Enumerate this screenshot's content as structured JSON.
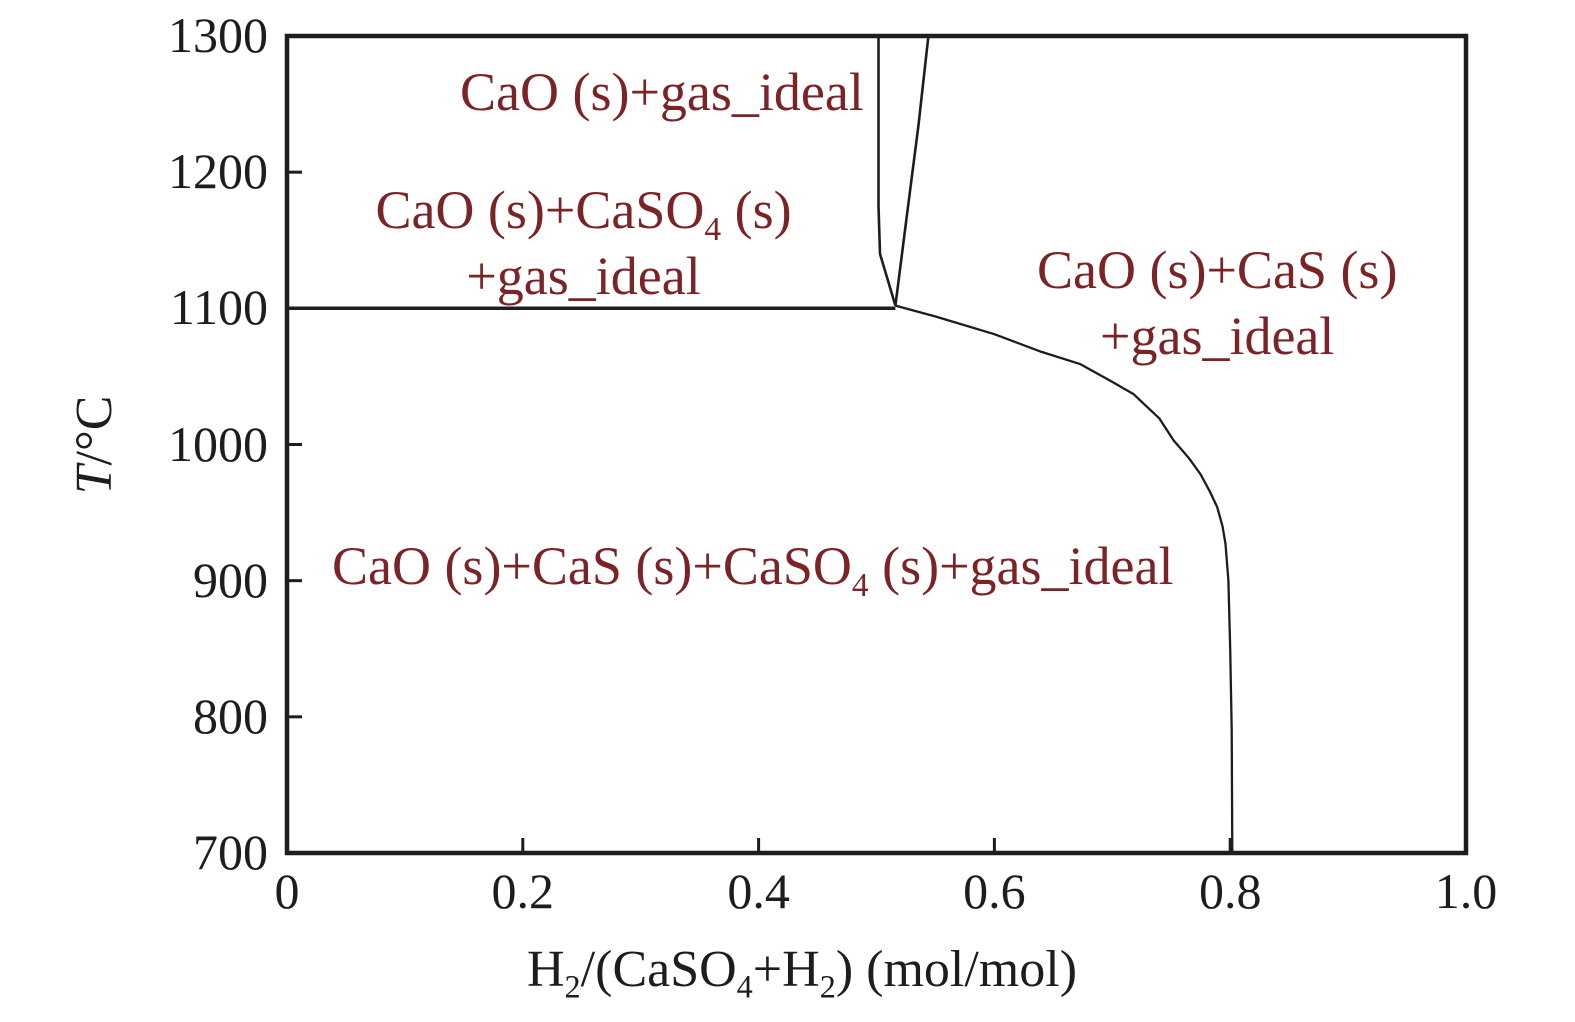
{
  "figure": {
    "background": "#ffffff",
    "axis_color": "#1d1d1d",
    "region_label_color": "#7b2428"
  },
  "chart_data": {
    "type": "line",
    "title": "",
    "xlabel": "H~2~/(CaSO~4~+H~2~) (mol/mol)",
    "ylabel": "*T*/°C",
    "xlim": [
      0,
      1.0
    ],
    "ylim": [
      700,
      1300
    ],
    "grid": false,
    "legend": null,
    "x_ticks": [
      0,
      0.2,
      0.4,
      0.6,
      0.8,
      1.0
    ],
    "x_tick_labels": [
      "0",
      "0.2",
      "0.4",
      "0.6",
      "0.8",
      "1.0"
    ],
    "y_ticks": [
      700,
      800,
      900,
      1000,
      1100,
      1200,
      1300
    ],
    "y_tick_labels": [
      "700",
      "800",
      "900",
      "1000",
      "1100",
      "1200",
      "1300"
    ],
    "boundaries": [
      {
        "id": "isotherm-1100",
        "width": 3.5,
        "points": [
          [
            0,
            1100
          ],
          [
            0.516,
            1100
          ]
        ]
      },
      {
        "id": "v-left-line",
        "width": 2.6,
        "points": [
          [
            0.5017,
            1300
          ],
          [
            0.5017,
            1175
          ],
          [
            0.503,
            1140
          ],
          [
            0.516,
            1102
          ]
        ]
      },
      {
        "id": "v-right-line",
        "width": 2.6,
        "points": [
          [
            0.544,
            1300
          ],
          [
            0.5355,
            1234
          ],
          [
            0.526,
            1170
          ],
          [
            0.516,
            1102
          ]
        ]
      },
      {
        "id": "cas-caso4-boundary-curve",
        "width": 2.3,
        "points": [
          [
            0.516,
            1102
          ],
          [
            0.55,
            1094
          ],
          [
            0.6,
            1081
          ],
          [
            0.64,
            1068
          ],
          [
            0.673,
            1059
          ],
          [
            0.7,
            1046
          ],
          [
            0.718,
            1037
          ],
          [
            0.74,
            1019
          ],
          [
            0.752,
            1003
          ],
          [
            0.765,
            990
          ],
          [
            0.775,
            978
          ],
          [
            0.783,
            965
          ],
          [
            0.789,
            954
          ],
          [
            0.7935,
            940
          ],
          [
            0.796,
            927
          ],
          [
            0.7985,
            900
          ],
          [
            0.8,
            850
          ],
          [
            0.8013,
            790
          ],
          [
            0.8018,
            700
          ]
        ]
      }
    ],
    "regions": [
      {
        "id": "cao-gas",
        "x": 0.318,
        "t": 1258,
        "lines": [
          "CaO (s)+gas_ideal"
        ]
      },
      {
        "id": "cao-caso4-gas",
        "x": 0.2515,
        "t": 1147,
        "lines": [
          "CaO (s)+CaSO~4~ (s)",
          "+gas_ideal"
        ]
      },
      {
        "id": "cao-cas-gas",
        "x": 0.789,
        "t": 1103,
        "lines": [
          "CaO (s)+CaS (s)",
          "+gas_ideal"
        ]
      },
      {
        "id": "cao-cas-caso4-gas",
        "x": 0.395,
        "t": 910,
        "lines": [
          "CaO (s)+CaS (s)+CaSO~4~ (s)+gas_ideal"
        ]
      }
    ]
  }
}
